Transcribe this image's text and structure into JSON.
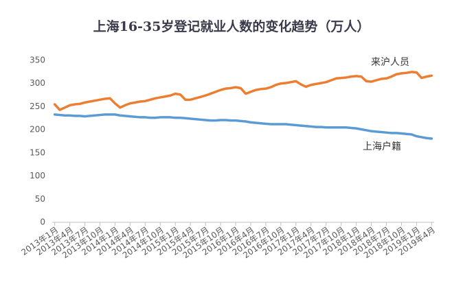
{
  "chart_data": {
    "type": "line",
    "title": "上海16-35岁登记就业人数的变化趋势（万人）",
    "categories": [
      "2013年1月",
      null,
      null,
      "2013年4月",
      null,
      null,
      "2013年7月",
      null,
      null,
      "2013年10月",
      null,
      null,
      "2014年1月",
      null,
      null,
      "2014年4月",
      null,
      null,
      "2014年7月",
      null,
      null,
      "2014年10月",
      null,
      null,
      "2015年1月",
      null,
      null,
      "2015年4月",
      null,
      null,
      "2015年7月",
      null,
      null,
      "2015年10月",
      null,
      null,
      "2016年1月",
      null,
      null,
      "2016年4月",
      null,
      null,
      "2016年7月",
      null,
      null,
      "2016年10月",
      null,
      null,
      "2017年1月",
      null,
      null,
      "2017年4月",
      null,
      null,
      "2017年7月",
      null,
      null,
      "2017年10月",
      null,
      null,
      "2018年1月",
      null,
      null,
      "2018年4月",
      null,
      null,
      "2018年7月",
      null,
      null,
      "2018年10月",
      null,
      null,
      "2019年1月",
      null,
      null,
      "2019年4月"
    ],
    "series": [
      {
        "name": "来沪人员",
        "color": "#ed7d31",
        "values": [
          255,
          243,
          248,
          253,
          255,
          256,
          259,
          261,
          263,
          265,
          267,
          268,
          257,
          248,
          253,
          257,
          259,
          261,
          262,
          265,
          268,
          270,
          272,
          274,
          278,
          276,
          265,
          265,
          268,
          271,
          274,
          278,
          282,
          286,
          289,
          290,
          292,
          290,
          278,
          282,
          286,
          288,
          289,
          292,
          297,
          300,
          301,
          303,
          305,
          298,
          293,
          297,
          299,
          301,
          303,
          307,
          311,
          312,
          313,
          315,
          316,
          315,
          305,
          304,
          307,
          310,
          311,
          315,
          320,
          322,
          323,
          325,
          324,
          312,
          315,
          317
        ]
      },
      {
        "name": "上海户籍",
        "color": "#5b9bd5",
        "values": [
          233,
          232,
          231,
          231,
          230,
          230,
          229,
          230,
          231,
          232,
          233,
          233,
          233,
          231,
          230,
          229,
          228,
          227,
          227,
          226,
          226,
          227,
          227,
          227,
          226,
          226,
          225,
          224,
          223,
          222,
          221,
          220,
          220,
          221,
          221,
          220,
          220,
          219,
          218,
          216,
          215,
          214,
          213,
          212,
          212,
          212,
          212,
          211,
          210,
          209,
          208,
          207,
          206,
          206,
          205,
          205,
          205,
          205,
          205,
          204,
          203,
          201,
          199,
          197,
          196,
          195,
          194,
          193,
          193,
          192,
          191,
          190,
          186,
          184,
          182,
          181
        ]
      }
    ],
    "ylim": [
      0,
      350
    ],
    "yticks": [
      0,
      50,
      100,
      150,
      200,
      250,
      300,
      350
    ]
  }
}
